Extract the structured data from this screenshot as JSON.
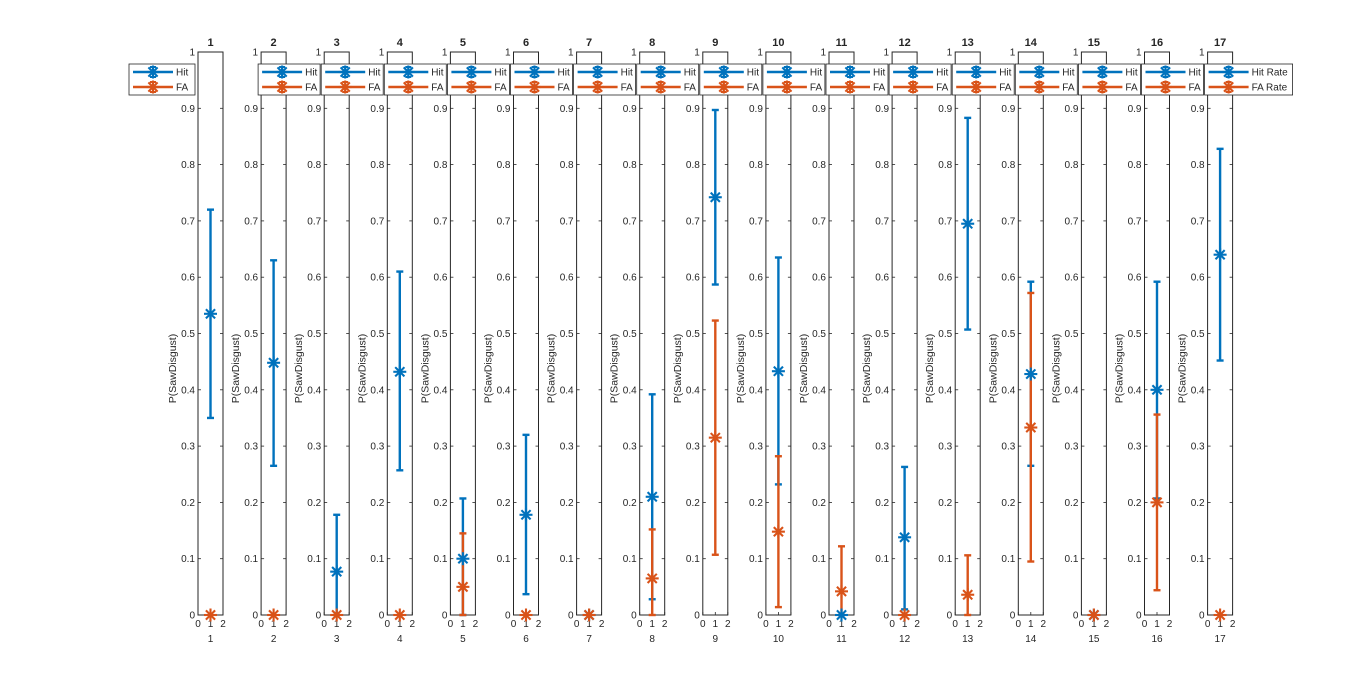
{
  "chart_data": {
    "type": "scatter",
    "panel_count": 17,
    "ylim": [
      0,
      1
    ],
    "xlim": [
      0,
      2
    ],
    "yticks": [
      "0",
      "0.1",
      "0.2",
      "0.3",
      "0.4",
      "0.5",
      "0.6",
      "0.7",
      "0.8",
      "0.9",
      "1"
    ],
    "xticks": [
      "0",
      "1",
      "2"
    ],
    "ylabel": "P(SawDisgust)",
    "colors": {
      "hit": "#0072BD",
      "fa": "#D95319"
    },
    "panels": [
      {
        "title": "1",
        "xlabel": "1",
        "legend": [
          "Hit",
          "FA"
        ],
        "hit": {
          "y": 0.535,
          "lo": 0.35,
          "hi": 0.72
        },
        "fa": {
          "y": 0.0,
          "lo": 0.0,
          "hi": 0.0
        }
      },
      {
        "title": "2",
        "xlabel": "2",
        "legend": [
          "Hit",
          "FA"
        ],
        "hit": {
          "y": 0.448,
          "lo": 0.265,
          "hi": 0.63
        },
        "fa": {
          "y": 0.0,
          "lo": 0.0,
          "hi": 0.0
        }
      },
      {
        "title": "3",
        "xlabel": "3",
        "legend": [
          "Hit",
          "FA"
        ],
        "hit": {
          "y": 0.077,
          "lo": 0.0,
          "hi": 0.178
        },
        "fa": {
          "y": 0.0,
          "lo": 0.0,
          "hi": 0.0
        }
      },
      {
        "title": "4",
        "xlabel": "4",
        "legend": [
          "Hit",
          "FA"
        ],
        "hit": {
          "y": 0.432,
          "lo": 0.257,
          "hi": 0.61
        },
        "fa": {
          "y": 0.0,
          "lo": 0.0,
          "hi": 0.0
        }
      },
      {
        "title": "5",
        "xlabel": "5",
        "legend": [
          "Hit",
          "FA"
        ],
        "hit": {
          "y": 0.1,
          "lo": 0.0,
          "hi": 0.207
        },
        "fa": {
          "y": 0.05,
          "lo": 0.0,
          "hi": 0.145
        }
      },
      {
        "title": "6",
        "xlabel": "6",
        "legend": [
          "Hit",
          "FA"
        ],
        "hit": {
          "y": 0.178,
          "lo": 0.037,
          "hi": 0.32
        },
        "fa": {
          "y": 0.0,
          "lo": 0.0,
          "hi": 0.0
        }
      },
      {
        "title": "7",
        "xlabel": "7",
        "legend": [
          "Hit",
          "FA"
        ],
        "hit": {
          "y": 0.0,
          "lo": 0.0,
          "hi": 0.0
        },
        "fa": {
          "y": 0.0,
          "lo": 0.0,
          "hi": 0.0
        }
      },
      {
        "title": "8",
        "xlabel": "8",
        "legend": [
          "Hit",
          "FA"
        ],
        "hit": {
          "y": 0.21,
          "lo": 0.028,
          "hi": 0.392
        },
        "fa": {
          "y": 0.065,
          "lo": 0.0,
          "hi": 0.152
        }
      },
      {
        "title": "9",
        "xlabel": "9",
        "legend": [
          "Hit",
          "FA"
        ],
        "hit": {
          "y": 0.742,
          "lo": 0.587,
          "hi": 0.897
        },
        "fa": {
          "y": 0.315,
          "lo": 0.107,
          "hi": 0.523
        }
      },
      {
        "title": "10",
        "xlabel": "10",
        "legend": [
          "Hit",
          "FA"
        ],
        "hit": {
          "y": 0.433,
          "lo": 0.232,
          "hi": 0.635
        },
        "fa": {
          "y": 0.148,
          "lo": 0.014,
          "hi": 0.282
        }
      },
      {
        "title": "11",
        "xlabel": "11",
        "legend": [
          "Hit",
          "FA"
        ],
        "hit": {
          "y": 0.0,
          "lo": 0.0,
          "hi": 0.0
        },
        "fa": {
          "y": 0.042,
          "lo": 0.0,
          "hi": 0.122
        }
      },
      {
        "title": "12",
        "xlabel": "12",
        "legend": [
          "Hit",
          "FA"
        ],
        "hit": {
          "y": 0.138,
          "lo": 0.01,
          "hi": 0.263
        },
        "fa": {
          "y": 0.0,
          "lo": 0.0,
          "hi": 0.0
        }
      },
      {
        "title": "13",
        "xlabel": "13",
        "legend": [
          "Hit",
          "FA"
        ],
        "hit": {
          "y": 0.695,
          "lo": 0.507,
          "hi": 0.883
        },
        "fa": {
          "y": 0.036,
          "lo": 0.0,
          "hi": 0.106
        }
      },
      {
        "title": "14",
        "xlabel": "14",
        "legend": [
          "Hit",
          "FA"
        ],
        "hit": {
          "y": 0.428,
          "lo": 0.265,
          "hi": 0.592
        },
        "fa": {
          "y": 0.333,
          "lo": 0.095,
          "hi": 0.572
        }
      },
      {
        "title": "15",
        "xlabel": "15",
        "legend": [
          "Hit",
          "FA"
        ],
        "hit": {
          "y": 0.0,
          "lo": 0.0,
          "hi": 0.0
        },
        "fa": {
          "y": 0.0,
          "lo": 0.0,
          "hi": 0.0
        }
      },
      {
        "title": "16",
        "xlabel": "16",
        "legend": [
          "Hit",
          "FA"
        ],
        "hit": {
          "y": 0.4,
          "lo": 0.207,
          "hi": 0.592
        },
        "fa": {
          "y": 0.2,
          "lo": 0.044,
          "hi": 0.356
        }
      },
      {
        "title": "17",
        "xlabel": "17",
        "legend": [
          "Hit Rate",
          "FA Rate"
        ],
        "hit": {
          "y": 0.64,
          "lo": 0.452,
          "hi": 0.828
        },
        "fa": {
          "y": 0.0,
          "lo": 0.0,
          "hi": 0.0
        }
      }
    ]
  }
}
